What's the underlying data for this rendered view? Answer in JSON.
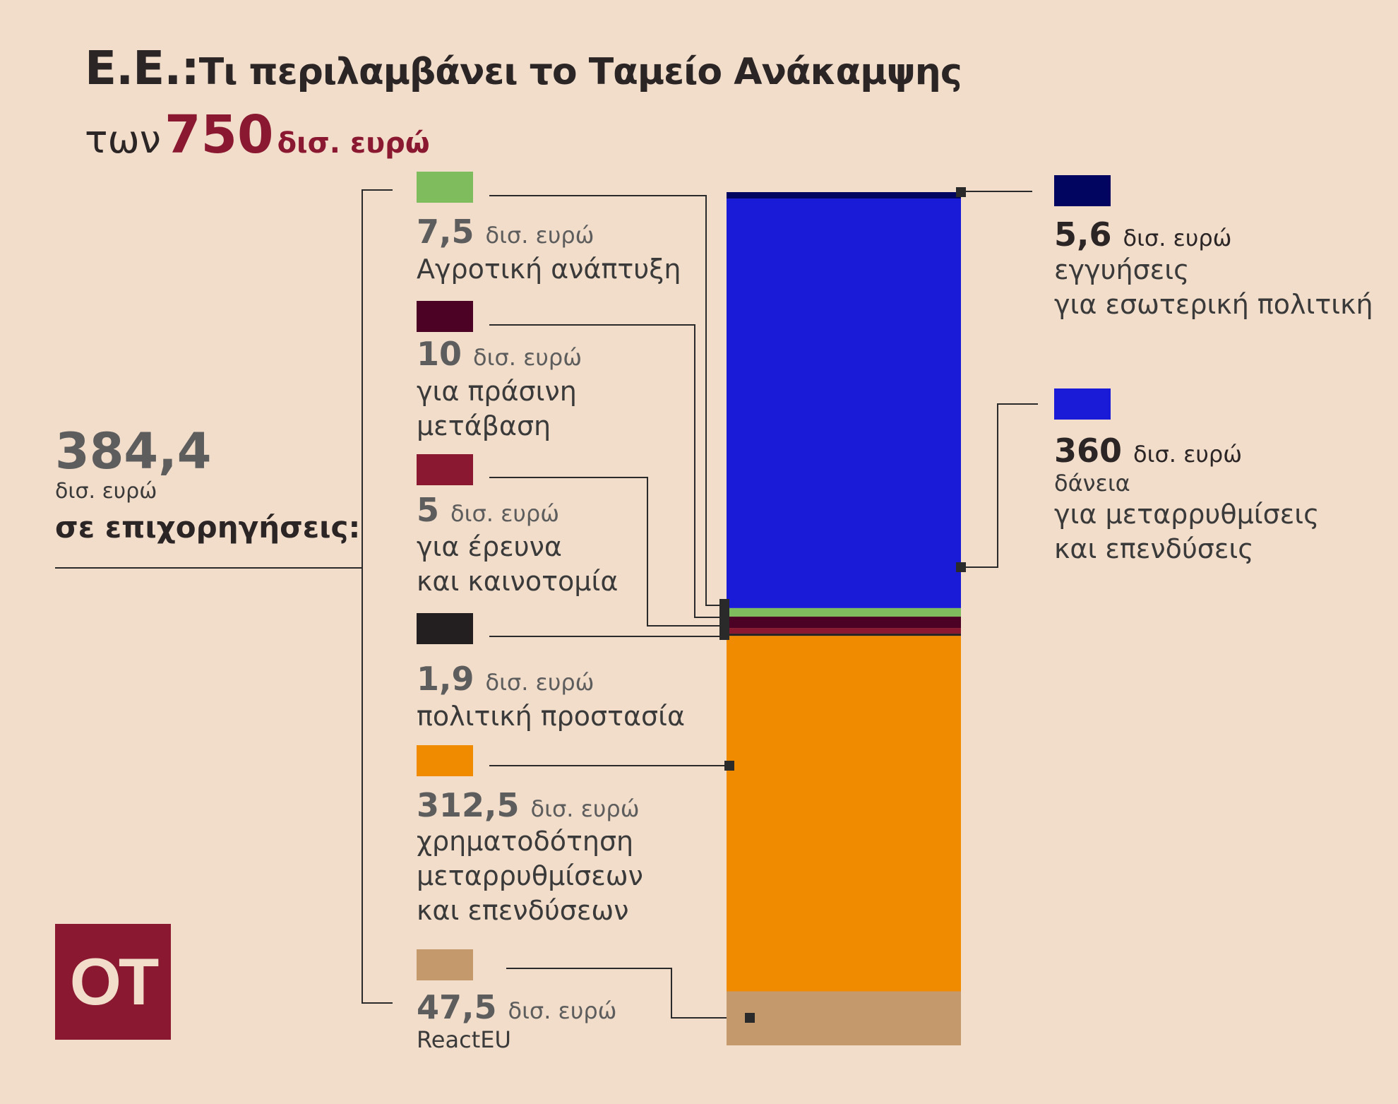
{
  "title": {
    "prefix": "Ε.Ε.:",
    "text": "Τι περιλαμβάνει το Ταμείο Ανάκαμψης"
  },
  "subtitle": {
    "prefix": "των",
    "number": "750",
    "unit": "δισ. ευρώ"
  },
  "grants": {
    "value": "384,4",
    "unit": "δισ. ευρώ",
    "label": "σε επιχορηγήσεις:"
  },
  "logo": "OT",
  "unit": "δισ. ευρώ",
  "colors": {
    "guarantees": "#020560",
    "loans": "#1a1bd6",
    "agri": "#7fbc5e",
    "green": "#4c0225",
    "research": "#8a1830",
    "civil": "#231f20",
    "rrf": "#f08b00",
    "react": "#c4996b",
    "background": "#f2ddca"
  },
  "items": {
    "agri": {
      "value": "7,5",
      "desc": [
        "Αγροτική ανάπτυξη"
      ]
    },
    "green": {
      "value": "10",
      "desc": [
        "για πράσινη",
        "μετάβαση"
      ]
    },
    "research": {
      "value": "5",
      "desc": [
        "για έρευνα",
        "και καινοτομία"
      ]
    },
    "civil": {
      "value": "1,9",
      "desc": [
        "πολιτική  προστασία"
      ]
    },
    "rrf": {
      "value": "312,5",
      "desc": [
        "χρηματοδότηση",
        "μεταρρυθμίσεων",
        "και επενδύσεων"
      ]
    },
    "react": {
      "value": "47,5",
      "desc": [
        "ReactEU"
      ]
    },
    "guarantees": {
      "value": "5,6",
      "desc": [
        "εγγυήσεις",
        "για εσωτερική πολιτική"
      ]
    },
    "loans": {
      "value": "360",
      "desc": [
        "δάνεια",
        "για μεταρρυθμίσεις",
        "και επενδύσεις"
      ]
    }
  },
  "chart_data": {
    "type": "bar",
    "stacked": true,
    "total": 750,
    "unit": "δισ. ευρώ",
    "categories": [
      "ReactEU",
      "χρηματοδότηση μεταρρυθμίσεων και επενδύσεων",
      "πολιτική  προστασία",
      "για έρευνα και καινοτομία",
      "για πράσινη μετάβαση",
      "Αγροτική ανάπτυξη",
      "δάνεια για μεταρρυθμίσεις και επενδύσεις",
      "εγγυήσεις για εσωτερική πολιτική"
    ],
    "values": [
      47.5,
      312.5,
      1.9,
      5,
      10,
      7.5,
      360,
      5.6
    ],
    "keys": [
      "react",
      "rrf",
      "civil",
      "research",
      "green",
      "agri",
      "loans",
      "guarantees"
    ]
  }
}
